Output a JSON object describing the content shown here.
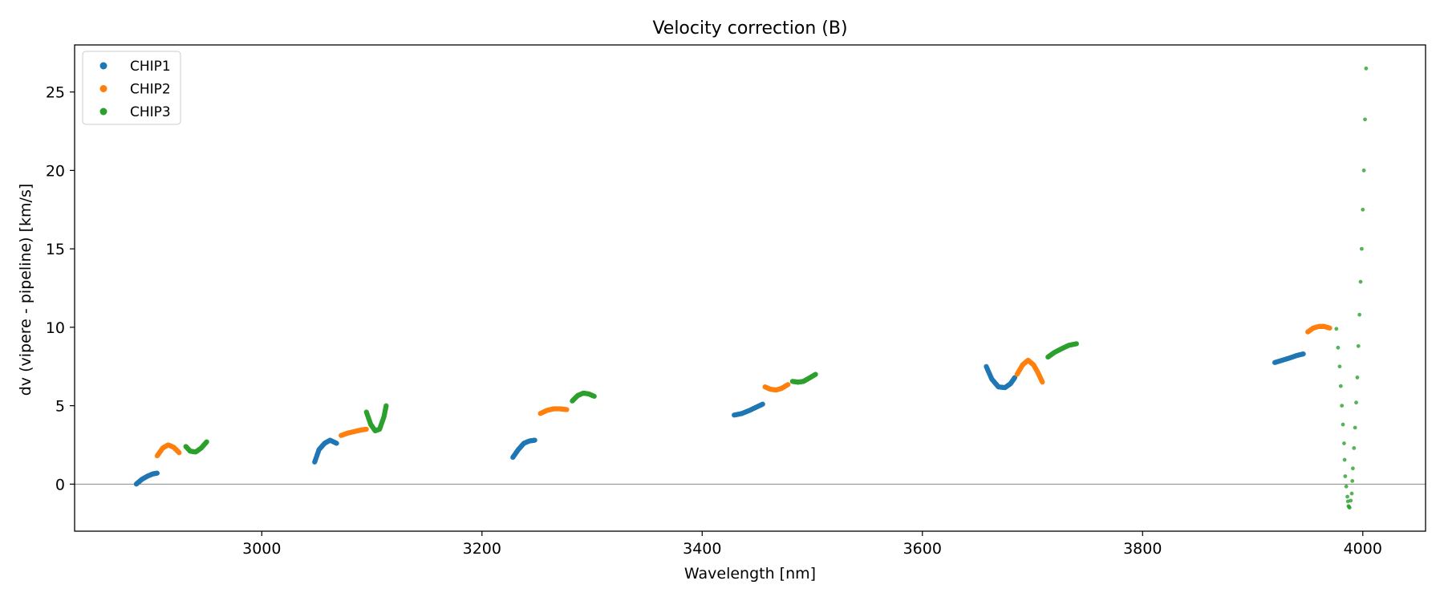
{
  "chart_data": {
    "type": "scatter",
    "title": "Velocity correction (B)",
    "xlabel": "Wavelength [nm]",
    "ylabel": "dv (vipere - pipeline) [km/s]",
    "xlim": [
      2830,
      4057
    ],
    "ylim": [
      -3,
      28
    ],
    "xticks": [
      3000,
      3200,
      3400,
      3600,
      3800,
      4000
    ],
    "yticks": [
      0,
      5,
      10,
      15,
      20,
      25
    ],
    "grid": false,
    "reference_line_y": 0,
    "legend": {
      "position": "top-left",
      "entries": [
        "CHIP1",
        "CHIP2",
        "CHIP3"
      ]
    },
    "series_colors": {
      "CHIP1": "#1f77b4",
      "CHIP2": "#ff7f0e",
      "CHIP3": "#2ca02c"
    },
    "series": [
      {
        "name": "CHIP1",
        "segments": [
          {
            "x": [
              2886,
              2891,
              2896,
              2901,
              2905
            ],
            "y": [
              0.0,
              0.3,
              0.5,
              0.65,
              0.7
            ]
          },
          {
            "x": [
              3048,
              3052,
              3057,
              3062,
              3068
            ],
            "y": [
              1.4,
              2.2,
              2.6,
              2.8,
              2.6
            ]
          },
          {
            "x": [
              3228,
              3233,
              3238,
              3243,
              3248
            ],
            "y": [
              1.7,
              2.2,
              2.6,
              2.75,
              2.8
            ]
          },
          {
            "x": [
              3429,
              3436,
              3443,
              3449,
              3455
            ],
            "y": [
              4.4,
              4.5,
              4.7,
              4.9,
              5.1
            ]
          },
          {
            "x": [
              3658,
              3663,
              3669,
              3675,
              3680,
              3684
            ],
            "y": [
              7.5,
              6.7,
              6.2,
              6.15,
              6.4,
              6.8
            ]
          },
          {
            "x": [
              3920,
              3927,
              3934,
              3940,
              3946
            ],
            "y": [
              7.75,
              7.9,
              8.05,
              8.2,
              8.3
            ]
          }
        ]
      },
      {
        "name": "CHIP2",
        "segments": [
          {
            "x": [
              2905,
              2910,
              2915,
              2920,
              2925
            ],
            "y": [
              1.8,
              2.3,
              2.5,
              2.35,
              2.0
            ]
          },
          {
            "x": [
              3072,
              3078,
              3084,
              3090,
              3095
            ],
            "y": [
              3.1,
              3.25,
              3.35,
              3.45,
              3.5
            ]
          },
          {
            "x": [
              3253,
              3259,
              3265,
              3271,
              3277
            ],
            "y": [
              4.5,
              4.7,
              4.8,
              4.8,
              4.75
            ]
          },
          {
            "x": [
              3457,
              3462,
              3467,
              3472,
              3478
            ],
            "y": [
              6.2,
              6.05,
              6.0,
              6.1,
              6.35
            ]
          },
          {
            "x": [
              3686,
              3691,
              3696,
              3701,
              3705,
              3709
            ],
            "y": [
              7.0,
              7.6,
              7.9,
              7.6,
              7.1,
              6.5
            ]
          },
          {
            "x": [
              3950,
              3955,
              3960,
              3965,
              3970
            ],
            "y": [
              9.7,
              9.95,
              10.05,
              10.05,
              9.95
            ]
          }
        ]
      },
      {
        "name": "CHIP3",
        "segments": [
          {
            "x": [
              2931,
              2935,
              2940,
              2945,
              2950
            ],
            "y": [
              2.4,
              2.1,
              2.05,
              2.3,
              2.7
            ]
          },
          {
            "x": [
              3095,
              3099,
              3103,
              3107,
              3111,
              3113
            ],
            "y": [
              4.6,
              3.8,
              3.4,
              3.5,
              4.3,
              5.0
            ]
          },
          {
            "x": [
              3282,
              3287,
              3292,
              3297,
              3302
            ],
            "y": [
              5.3,
              5.65,
              5.8,
              5.75,
              5.6
            ]
          },
          {
            "x": [
              3482,
              3487,
              3492,
              3497,
              3503
            ],
            "y": [
              6.55,
              6.5,
              6.55,
              6.75,
              7.0
            ]
          },
          {
            "x": [
              3714,
              3720,
              3727,
              3733,
              3740
            ],
            "y": [
              8.1,
              8.4,
              8.65,
              8.85,
              8.95
            ]
          },
          {
            "x": [
              3976,
              3979,
              3981,
              3983,
              3984,
              3986,
              3987,
              3988,
              3990,
              3991,
              3993,
              3995,
              3997,
              3999,
              4001,
              4003
            ],
            "y": [
              9.9,
              7.5,
              5.0,
              2.6,
              0.5,
              -0.8,
              -1.4,
              -1.5,
              -0.6,
              1.0,
              3.6,
              6.8,
              10.8,
              15.0,
              20.0,
              26.5
            ]
          }
        ]
      }
    ]
  }
}
